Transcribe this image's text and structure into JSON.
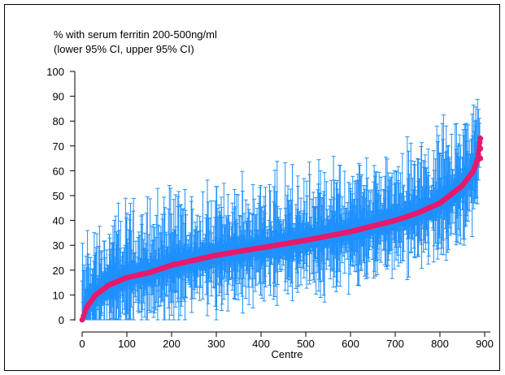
{
  "chart_data": {
    "type": "scatter",
    "title": "% with serum ferritin 200-500ng/ml",
    "subtitle": "(lower 95% CI, upper 95% CI)",
    "xlabel": "Centre",
    "ylabel": "",
    "xlim": [
      0,
      900
    ],
    "ylim": [
      0,
      100
    ],
    "x_ticks": [
      0,
      100,
      200,
      300,
      400,
      500,
      600,
      700,
      800,
      900
    ],
    "y_ticks": [
      0,
      10,
      20,
      30,
      40,
      50,
      60,
      70,
      80,
      90,
      100
    ],
    "n_centres": 890,
    "grid": false,
    "legend": "none",
    "point_color": "#e8196b",
    "ci_color": "#1e90ff",
    "estimate_profile": [
      {
        "x": 0,
        "y": 0
      },
      {
        "x": 10,
        "y": 5
      },
      {
        "x": 30,
        "y": 10
      },
      {
        "x": 60,
        "y": 14
      },
      {
        "x": 100,
        "y": 17
      },
      {
        "x": 150,
        "y": 19
      },
      {
        "x": 200,
        "y": 22
      },
      {
        "x": 300,
        "y": 26
      },
      {
        "x": 400,
        "y": 29
      },
      {
        "x": 500,
        "y": 32
      },
      {
        "x": 600,
        "y": 35.5
      },
      {
        "x": 700,
        "y": 40
      },
      {
        "x": 750,
        "y": 43
      },
      {
        "x": 800,
        "y": 47
      },
      {
        "x": 850,
        "y": 54
      },
      {
        "x": 875,
        "y": 60
      },
      {
        "x": 885,
        "y": 65
      },
      {
        "x": 890,
        "y": 73
      }
    ]
  }
}
